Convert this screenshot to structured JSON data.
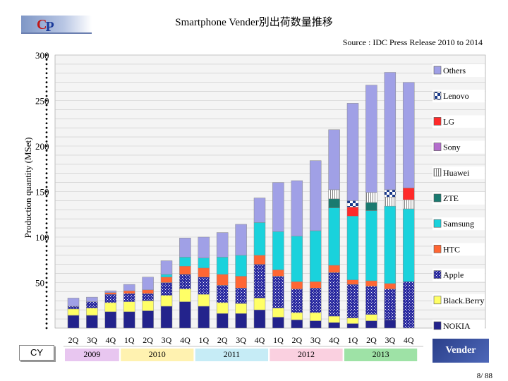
{
  "header": {
    "logo_c": "C",
    "logo_p": "P",
    "title": "Smartphone Vender別出荷数量推移",
    "source": "Source : IDC Press Release 2010 to 2014"
  },
  "footer": {
    "cy_label": "CY",
    "vender_label": "Vender",
    "page": "8/ 88"
  },
  "colors": {
    "NOKIA": "#23238c",
    "BlackBerry": "#ffff66",
    "Apple": "#2a2aa0",
    "HTC": "#ff6633",
    "Samsung": "#1ad2dc",
    "ZTE": "#1a7a70",
    "Huawei": "#c0ecf0",
    "Sony": "#b46ecd",
    "LG": "#ff2a2a",
    "Lenovo": "#1a3a8a",
    "Others": "#a0a0e6"
  },
  "chart_data": {
    "type": "bar",
    "stacked": true,
    "title": "Smartphone Vender別出荷数量推移",
    "ylabel": "Production quantity (MSet)",
    "ylim": [
      0,
      300
    ],
    "yticks": [
      "50",
      "100",
      "150",
      "200",
      "250",
      "300"
    ],
    "categories": [
      "2Q",
      "3Q",
      "4Q",
      "1Q",
      "2Q",
      "3Q",
      "4Q",
      "1Q",
      "2Q",
      "3Q",
      "4Q",
      "1Q",
      "2Q",
      "3Q",
      "4Q",
      "1Q",
      "2Q",
      "3Q",
      "4Q"
    ],
    "years": [
      {
        "label": "2009",
        "span": 3,
        "color": "#e8c6f0"
      },
      {
        "label": "2010",
        "span": 4,
        "color": "#fff2b0"
      },
      {
        "label": "2011",
        "span": 4,
        "color": "#c6ecf6"
      },
      {
        "label": "2012",
        "span": 4,
        "color": "#fad0e0"
      },
      {
        "label": "2013",
        "span": 4,
        "color": "#9ee2a6"
      }
    ],
    "legend_position": "right",
    "series": [
      {
        "name": "NOKIA",
        "values": [
          14,
          14,
          18,
          18,
          19,
          24,
          29,
          24,
          16,
          16,
          20,
          12,
          9,
          8,
          6,
          5,
          8,
          9,
          0
        ]
      },
      {
        "name": "BlackBerry",
        "values": [
          7,
          8,
          10,
          11,
          11,
          12,
          14,
          13,
          12,
          11,
          13,
          10,
          8,
          9,
          7,
          6,
          7,
          0,
          0
        ]
      },
      {
        "name": "Apple",
        "values": [
          3,
          7,
          9,
          9,
          8,
          14,
          16,
          19,
          19,
          17,
          37,
          35,
          26,
          27,
          48,
          37,
          31,
          34,
          51
        ]
      },
      {
        "name": "HTC",
        "values": [
          0,
          0,
          2,
          3,
          4,
          6,
          9,
          10,
          12,
          13,
          10,
          7,
          8,
          7,
          8,
          5,
          6,
          6,
          0
        ]
      },
      {
        "name": "Samsung",
        "values": [
          0,
          0,
          0,
          0,
          0,
          3,
          10,
          11,
          19,
          23,
          36,
          42,
          50,
          56,
          63,
          70,
          77,
          85,
          80
        ]
      },
      {
        "name": "ZTE",
        "values": [
          0,
          0,
          0,
          0,
          0,
          0,
          0,
          0,
          0,
          0,
          0,
          0,
          0,
          0,
          10,
          0,
          9,
          0,
          0
        ]
      },
      {
        "name": "Huawei",
        "values": [
          0,
          0,
          0,
          0,
          0,
          0,
          0,
          0,
          0,
          0,
          0,
          0,
          0,
          0,
          10,
          0,
          11,
          10,
          10
        ]
      },
      {
        "name": "Sony",
        "values": [
          0,
          0,
          0,
          0,
          0,
          0,
          0,
          0,
          0,
          0,
          0,
          0,
          0,
          0,
          0,
          0,
          0,
          0,
          0
        ]
      },
      {
        "name": "LG",
        "values": [
          0,
          0,
          0,
          0,
          0,
          0,
          0,
          0,
          0,
          0,
          0,
          0,
          0,
          0,
          0,
          10,
          0,
          0,
          13
        ]
      },
      {
        "name": "Lenovo",
        "values": [
          0,
          0,
          0,
          0,
          0,
          0,
          0,
          0,
          0,
          0,
          0,
          0,
          0,
          0,
          0,
          7,
          0,
          8,
          0
        ]
      },
      {
        "name": "Others",
        "values": [
          9,
          5,
          2,
          7,
          14,
          15,
          21,
          23,
          27,
          34,
          27,
          54,
          61,
          77,
          66,
          107,
          118,
          129,
          116
        ]
      }
    ],
    "legend": [
      "Others",
      "Lenovo",
      "LG",
      "Sony",
      "Huawei",
      "ZTE",
      "Samsung",
      "HTC",
      "Apple",
      "Black.Berry",
      "NOKIA"
    ]
  }
}
